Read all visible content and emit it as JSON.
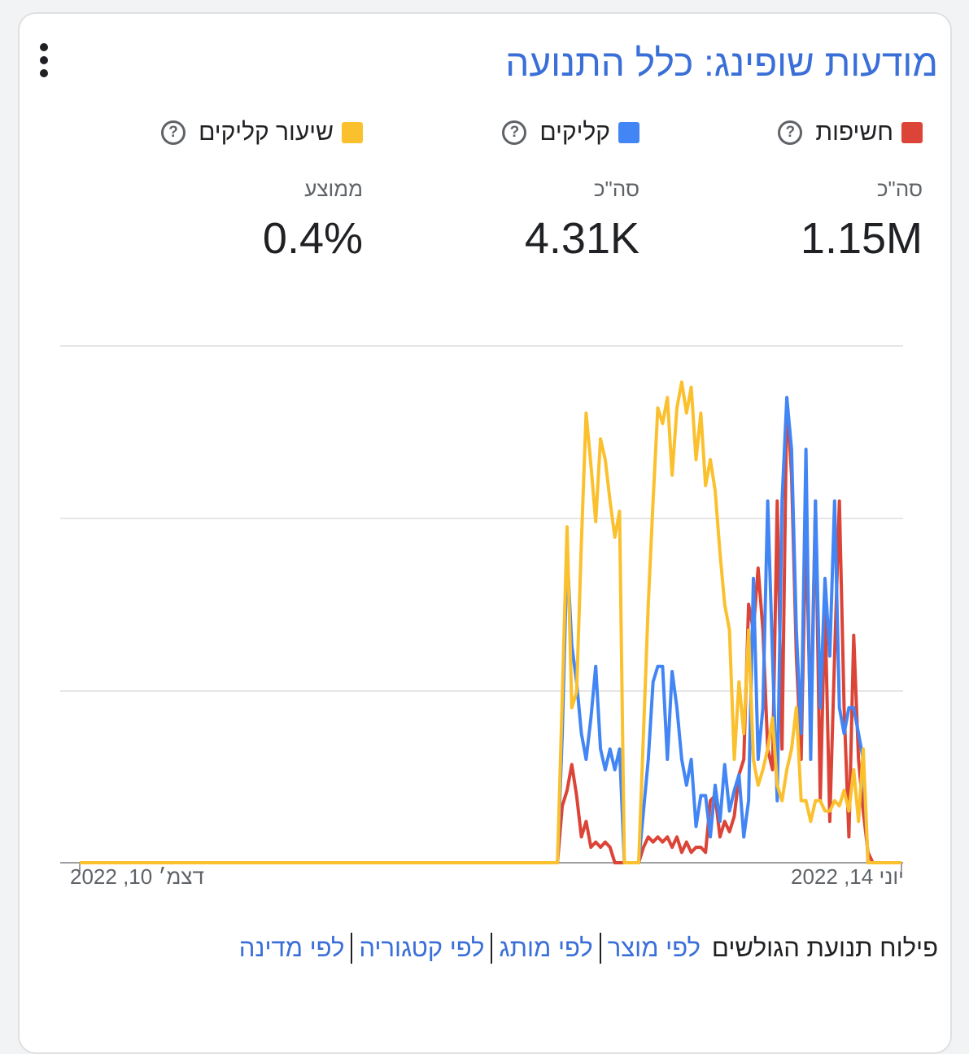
{
  "title": "מודעות שופינג: כלל התנועה",
  "metrics": [
    {
      "label": "חשיפות",
      "color": "#db4437",
      "sub": "סה\"כ",
      "value": "1.15M"
    },
    {
      "label": "קליקים",
      "color": "#4285f4",
      "sub": "סה\"כ",
      "value": "4.31K"
    },
    {
      "label": "שיעור קליקים",
      "color": "#fbc02d",
      "sub": "ממוצע",
      "value": "0.4%"
    }
  ],
  "help_glyph": "?",
  "icons": {
    "menu": "more-vert-icon",
    "help": "help-circle-icon"
  },
  "breakdown": {
    "label": "פילוח תנועת הגולשים",
    "links": [
      "לפי מוצר",
      "לפי מותג",
      "לפי קטגוריה",
      "לפי מדינה"
    ]
  },
  "chart_data": {
    "type": "line",
    "title": "",
    "xlabel": "",
    "ylabel": "",
    "grid": true,
    "x_range": [
      "יוני 14, 2022",
      "דצמ׳ 10, 2022"
    ],
    "x_tick_labels": [
      "יוני 14, 2022",
      "דצמ׳ 10, 2022"
    ],
    "y_scale": "normalized per series (0 = baseline, 1 = top gridline)",
    "series": [
      {
        "name": "חשיפות",
        "color": "#db4437",
        "values": [
          0,
          0,
          0,
          0,
          0,
          0,
          0,
          0,
          0,
          0,
          0,
          0,
          0,
          0,
          0,
          0,
          0,
          0,
          0,
          0,
          0,
          0,
          0,
          0,
          0,
          0,
          0,
          0,
          0,
          0,
          0,
          0,
          0,
          0,
          0,
          0,
          0,
          0,
          0,
          0,
          0,
          0,
          0,
          0,
          0,
          0,
          0,
          0,
          0,
          0,
          0,
          0,
          0,
          0,
          0,
          0,
          0,
          0,
          0,
          0,
          0,
          0,
          0,
          0,
          0,
          0,
          0,
          0,
          0,
          0,
          0,
          0,
          0,
          0,
          0,
          0,
          0,
          0,
          0,
          0,
          0,
          0,
          0,
          0,
          0,
          0,
          0,
          0,
          0,
          0,
          0,
          0,
          0,
          0,
          0,
          0,
          0,
          0,
          0,
          0,
          0,
          0.11,
          0.14,
          0.19,
          0.13,
          0.05,
          0.08,
          0.03,
          0.04,
          0.03,
          0.04,
          0.03,
          0,
          0,
          0,
          0,
          0,
          0,
          0.03,
          0.05,
          0.04,
          0.05,
          0.04,
          0.05,
          0.03,
          0.05,
          0.02,
          0.04,
          0.02,
          0.03,
          0.03,
          0.02,
          0.12,
          0.13,
          0.05,
          0.08,
          0.06,
          0.09,
          0.17,
          0.2,
          0.5,
          0.45,
          0.57,
          0.45,
          0.22,
          0.18,
          0.7,
          0.22,
          0.9,
          0.75,
          0.4,
          0.2,
          0.66,
          0.25,
          0.7,
          0.12,
          0.5,
          0.08,
          0.4,
          0.7,
          0.3,
          0.05,
          0.44,
          0.2,
          0.1,
          0.02,
          0,
          0,
          0,
          0,
          0,
          0,
          0
        ]
      },
      {
        "name": "קליקים",
        "color": "#4285f4",
        "values": [
          0,
          0,
          0,
          0,
          0,
          0,
          0,
          0,
          0,
          0,
          0,
          0,
          0,
          0,
          0,
          0,
          0,
          0,
          0,
          0,
          0,
          0,
          0,
          0,
          0,
          0,
          0,
          0,
          0,
          0,
          0,
          0,
          0,
          0,
          0,
          0,
          0,
          0,
          0,
          0,
          0,
          0,
          0,
          0,
          0,
          0,
          0,
          0,
          0,
          0,
          0,
          0,
          0,
          0,
          0,
          0,
          0,
          0,
          0,
          0,
          0,
          0,
          0,
          0,
          0,
          0,
          0,
          0,
          0,
          0,
          0,
          0,
          0,
          0,
          0,
          0,
          0,
          0,
          0,
          0,
          0,
          0,
          0,
          0,
          0,
          0,
          0,
          0,
          0,
          0,
          0,
          0,
          0,
          0,
          0,
          0,
          0,
          0,
          0,
          0,
          0,
          0.25,
          0.6,
          0.42,
          0.35,
          0.25,
          0.2,
          0.28,
          0.38,
          0.22,
          0.18,
          0.22,
          0.18,
          0.22,
          0,
          0,
          0,
          0,
          0.1,
          0.2,
          0.35,
          0.38,
          0.38,
          0.2,
          0.37,
          0.3,
          0.2,
          0.15,
          0.2,
          0.07,
          0.13,
          0.13,
          0.05,
          0.15,
          0.08,
          0.19,
          0.1,
          0.14,
          0.17,
          0.05,
          0.12,
          0.55,
          0.2,
          0.3,
          0.7,
          0.4,
          0.12,
          0.7,
          0.9,
          0.8,
          0.45,
          0.25,
          0.8,
          0.2,
          0.7,
          0.3,
          0.55,
          0.4,
          0.7,
          0.3,
          0.25,
          0.3,
          0.3,
          0.25,
          0.2,
          0,
          0,
          0,
          0,
          0,
          0,
          0,
          0
        ]
      },
      {
        "name": "שיעור קליקים",
        "color": "#fbc02d",
        "values": [
          0,
          0,
          0,
          0,
          0,
          0,
          0,
          0,
          0,
          0,
          0,
          0,
          0,
          0,
          0,
          0,
          0,
          0,
          0,
          0,
          0,
          0,
          0,
          0,
          0,
          0,
          0,
          0,
          0,
          0,
          0,
          0,
          0,
          0,
          0,
          0,
          0,
          0,
          0,
          0,
          0,
          0,
          0,
          0,
          0,
          0,
          0,
          0,
          0,
          0,
          0,
          0,
          0,
          0,
          0,
          0,
          0,
          0,
          0,
          0,
          0,
          0,
          0,
          0,
          0,
          0,
          0,
          0,
          0,
          0,
          0,
          0,
          0,
          0,
          0,
          0,
          0,
          0,
          0,
          0,
          0,
          0,
          0,
          0,
          0,
          0,
          0,
          0,
          0,
          0,
          0,
          0,
          0,
          0,
          0,
          0,
          0,
          0,
          0,
          0,
          0,
          0.32,
          0.65,
          0.3,
          0.33,
          0.62,
          0.87,
          0.77,
          0.66,
          0.82,
          0.78,
          0.7,
          0.63,
          0.68,
          0,
          0,
          0,
          0,
          0.25,
          0.5,
          0.7,
          0.88,
          0.85,
          0.9,
          0.75,
          0.88,
          0.93,
          0.87,
          0.92,
          0.78,
          0.87,
          0.73,
          0.78,
          0.72,
          0.6,
          0.5,
          0.45,
          0.2,
          0.35,
          0.25,
          0.45,
          0.2,
          0.15,
          0.18,
          0.22,
          0.28,
          0.15,
          0.12,
          0.18,
          0.22,
          0.3,
          0.12,
          0.12,
          0.08,
          0.12,
          0.12,
          0.1,
          0.1,
          0.12,
          0.11,
          0.14,
          0.1,
          0.18,
          0.08,
          0.22,
          0,
          0,
          0,
          0,
          0,
          0,
          0,
          0
        ]
      }
    ]
  }
}
